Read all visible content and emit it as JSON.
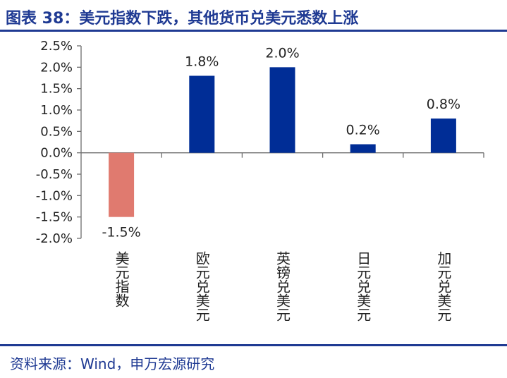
{
  "figure": {
    "title": "图表 38：美元指数下跌，其他货币兑美元悉数上涨",
    "source": "资料来源：Wind，申万宏源研究"
  },
  "colors": {
    "brand": "#1f3a93",
    "positive_bar": "#002d96",
    "negative_bar": "#e07a6f",
    "axis": "#6d6d6d"
  },
  "chart_data": {
    "type": "bar",
    "categories": [
      "美元指数",
      "欧元兑美元",
      "英镑兑美元",
      "日元兑美元",
      "加元兑美元"
    ],
    "values": [
      -1.5,
      1.8,
      2.0,
      0.2,
      0.8
    ],
    "data_labels": [
      "-1.5%",
      "1.8%",
      "2.0%",
      "0.2%",
      "0.8%"
    ],
    "ylim": [
      -2.0,
      2.5
    ],
    "yticks": [
      "-2.0%",
      "-1.5%",
      "-1.0%",
      "-0.5%",
      "0.0%",
      "0.5%",
      "1.0%",
      "1.5%",
      "2.0%",
      "2.5%"
    ],
    "ytick_values": [
      -2.0,
      -1.5,
      -1.0,
      -0.5,
      0.0,
      0.5,
      1.0,
      1.5,
      2.0,
      2.5
    ],
    "unit": "%",
    "xlabel": "",
    "ylabel": "",
    "grid": false,
    "legend": "none",
    "category_label_orientation": "vertical"
  }
}
